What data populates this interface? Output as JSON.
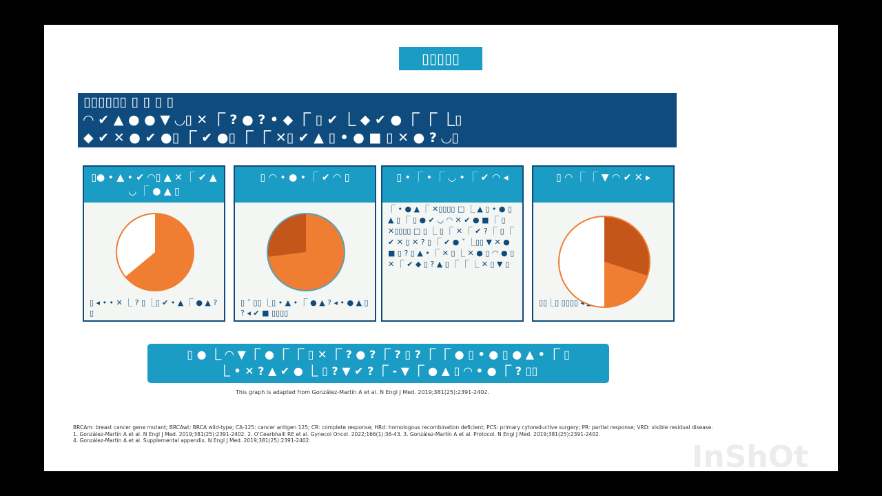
{
  "slide": {
    "title": "▯▯▯▯▯",
    "banner": [
      "▯▯▯▯▯▯ ▯ ▯ ▯ ▯",
      "◠ ✔ ▲ ● ● ▼ ◡▯ ✕ ⎾ ? ● ? • ◆ ⎾ ▯ ✔ ⎿ ◆ ✔ ● ⎾ ⎾ ⎿▯",
      "◆ ✔ ✕ ● ✔ ●▯ ⎾ ✔ ●▯ ⎾ ⎾ ✕▯ ✔ ▲ ▯ • ● ■ ▯ ✕ ● ? ◡▯"
    ],
    "panels": [
      {
        "header": "▯● • ▲ • ✔ ◠▯ ▲ ✕ ⎾ ✔ ▲ ◡ ⎾ ● ▲ ▯",
        "slices": [
          {
            "value": 64,
            "color": "#ef7d32"
          },
          {
            "value": 36,
            "color": "#ffffff"
          }
        ],
        "outline": "#ef7d32",
        "caption": "▯ ◂ • • ✕ ⎿ ? ▯ ⎿▯ ✔ • ▲ ⎾ ● ▲ ? ▯"
      },
      {
        "header": "▯ ◠ • ● • ⎾ ✔ ◠ ▯",
        "slices": [
          {
            "value": 73,
            "color": "#ef7d32"
          },
          {
            "value": 27,
            "color": "#c4561a"
          }
        ],
        "outline": "#5aa0b4",
        "caption": "▯ ˇ ▯▯ ⎿▯ • ▲ • ⎾ ● ▲ ? ◂ • ● ▲ ▯ ? ◂ ✔ ■ ▯▯▯▯"
      },
      {
        "header": "▯ • ⎾ • ⎾ ◡ • ⎾ ✔ ◠ ◂",
        "body": "⎾ • ● ▲ ⎾ ✕▯▯▯▯ □ ⎿ ▲ ▯ • ● ▯ ▲ ▯ ⎾ ▯ ● ✔ ◡ ◠ ✕ ✔ ● ■ ⎾ ▯ ✕▯▯▯▯ □ ▯ ⎿ ▯ ⎾ ✕ ⎾ ✔ ? ⎾ ▯ ⎾ ✔ ✕ ▯ ✕ ? ▯ ⎾ ✔ ● ˇ ⎿▯▯ ▼ ✕ ● ■ ▯ ? ▯ ▲ • ⎾ ✕ ▯ ⎿ ✕ ● ▯ ◠ ● ▯ ✕ ⎾ ✔ ◆ ▯ ? ▲ ▯ ⎾ ⎾ ⎿ ✕ ▯ ▼ ▯"
      },
      {
        "header": "▯ ◠ ⎾ ⎾ ▼ ◠ ✔ ✕ ▸",
        "slices": [
          {
            "value": 30,
            "color": "#c4561a"
          },
          {
            "value": 20,
            "color": "#ef7d32"
          },
          {
            "value": 50,
            "color": "#ffffff"
          }
        ],
        "outline": "#ef7d32",
        "caption": "▯▯⎿▯ ▯▯▯▯ ◂ ▲"
      }
    ],
    "bottom": [
      "▯ ● ⎿ ◠ ▼ ⎾ ● ⎾ ⎾ ▯ ✕ ⎾ ? ● ? ⎾ ? ▯ ? ⎾ ⎾ ● ▯ • ● ▯ ● ▲ • ⎾ ▯",
      "⎿ • ✕ ? ▲ ✔ ● ⎿ ▯ ? ▼ ✔ ? ⎾ - ▼ ⎾ ● ▲ ▯ ◠ • ● ⎾ ? ▯▯"
    ],
    "source": "This graph is adapted from González-Martín A et al. N Engl J Med. 2019;381(25):2391-2402.",
    "footnotes": [
      "BRCAm: breast cancer gene mutant; BRCAwt: BRCA wild-type; CA-125: cancer antigen 125; CR: complete response; HRd: homologous recombination deficient; PCS: primary cytoreductive surgery; PR: partial response; VRD: visible residual disease.",
      "1. González-Martín A et al. N Engl J Med. 2019;381(25):2391-2402. 2. O'Cearbhaill RE et al. Gynecol Oncol. 2022;166(1):36-43. 3. González-Martín A et al. Protocol. N Engl J Med. 2019;381(25):2391-2402.",
      "4. González-Martín A et al. Supplemental appendix. N Engl J Med. 2019;381(25):2391-2402."
    ],
    "watermark": "InShOt"
  }
}
